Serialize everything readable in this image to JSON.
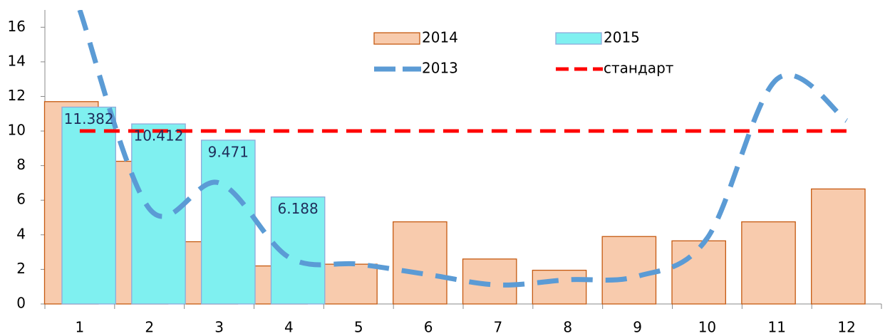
{
  "chart_data": {
    "type": "bar-line",
    "categories": [
      "1",
      "2",
      "3",
      "4",
      "5",
      "6",
      "7",
      "8",
      "9",
      "10",
      "11",
      "12"
    ],
    "series": [
      {
        "name": "2014",
        "type": "bar",
        "color": "#f8cbad",
        "stroke": "#c55a11",
        "values": [
          11.7,
          8.25,
          3.6,
          2.2,
          2.3,
          4.75,
          2.6,
          1.95,
          3.9,
          3.65,
          4.75,
          6.65
        ]
      },
      {
        "name": "2015",
        "type": "bar",
        "color": "#7ff0f0",
        "stroke": "#8eaadb",
        "values": [
          11.382,
          10.412,
          9.471,
          6.188,
          null,
          null,
          null,
          null,
          null,
          null,
          null,
          null
        ]
      },
      {
        "name": "2013",
        "type": "line",
        "color": "#5b9bd5",
        "dashed": true,
        "smooth": true,
        "values": [
          17.0,
          5.5,
          7.0,
          2.7,
          2.3,
          1.7,
          1.1,
          1.4,
          1.6,
          3.8,
          13.0,
          10.6
        ]
      },
      {
        "name": "стандарт",
        "type": "line",
        "color": "#ff0000",
        "dashed": true,
        "values": [
          10,
          10,
          10,
          10,
          10,
          10,
          10,
          10,
          10,
          10,
          10,
          10
        ]
      }
    ],
    "ylim": [
      0,
      17
    ],
    "yticks": [
      0,
      2,
      4,
      6,
      8,
      10,
      12,
      14,
      16
    ],
    "grid": false,
    "legend": "top"
  }
}
